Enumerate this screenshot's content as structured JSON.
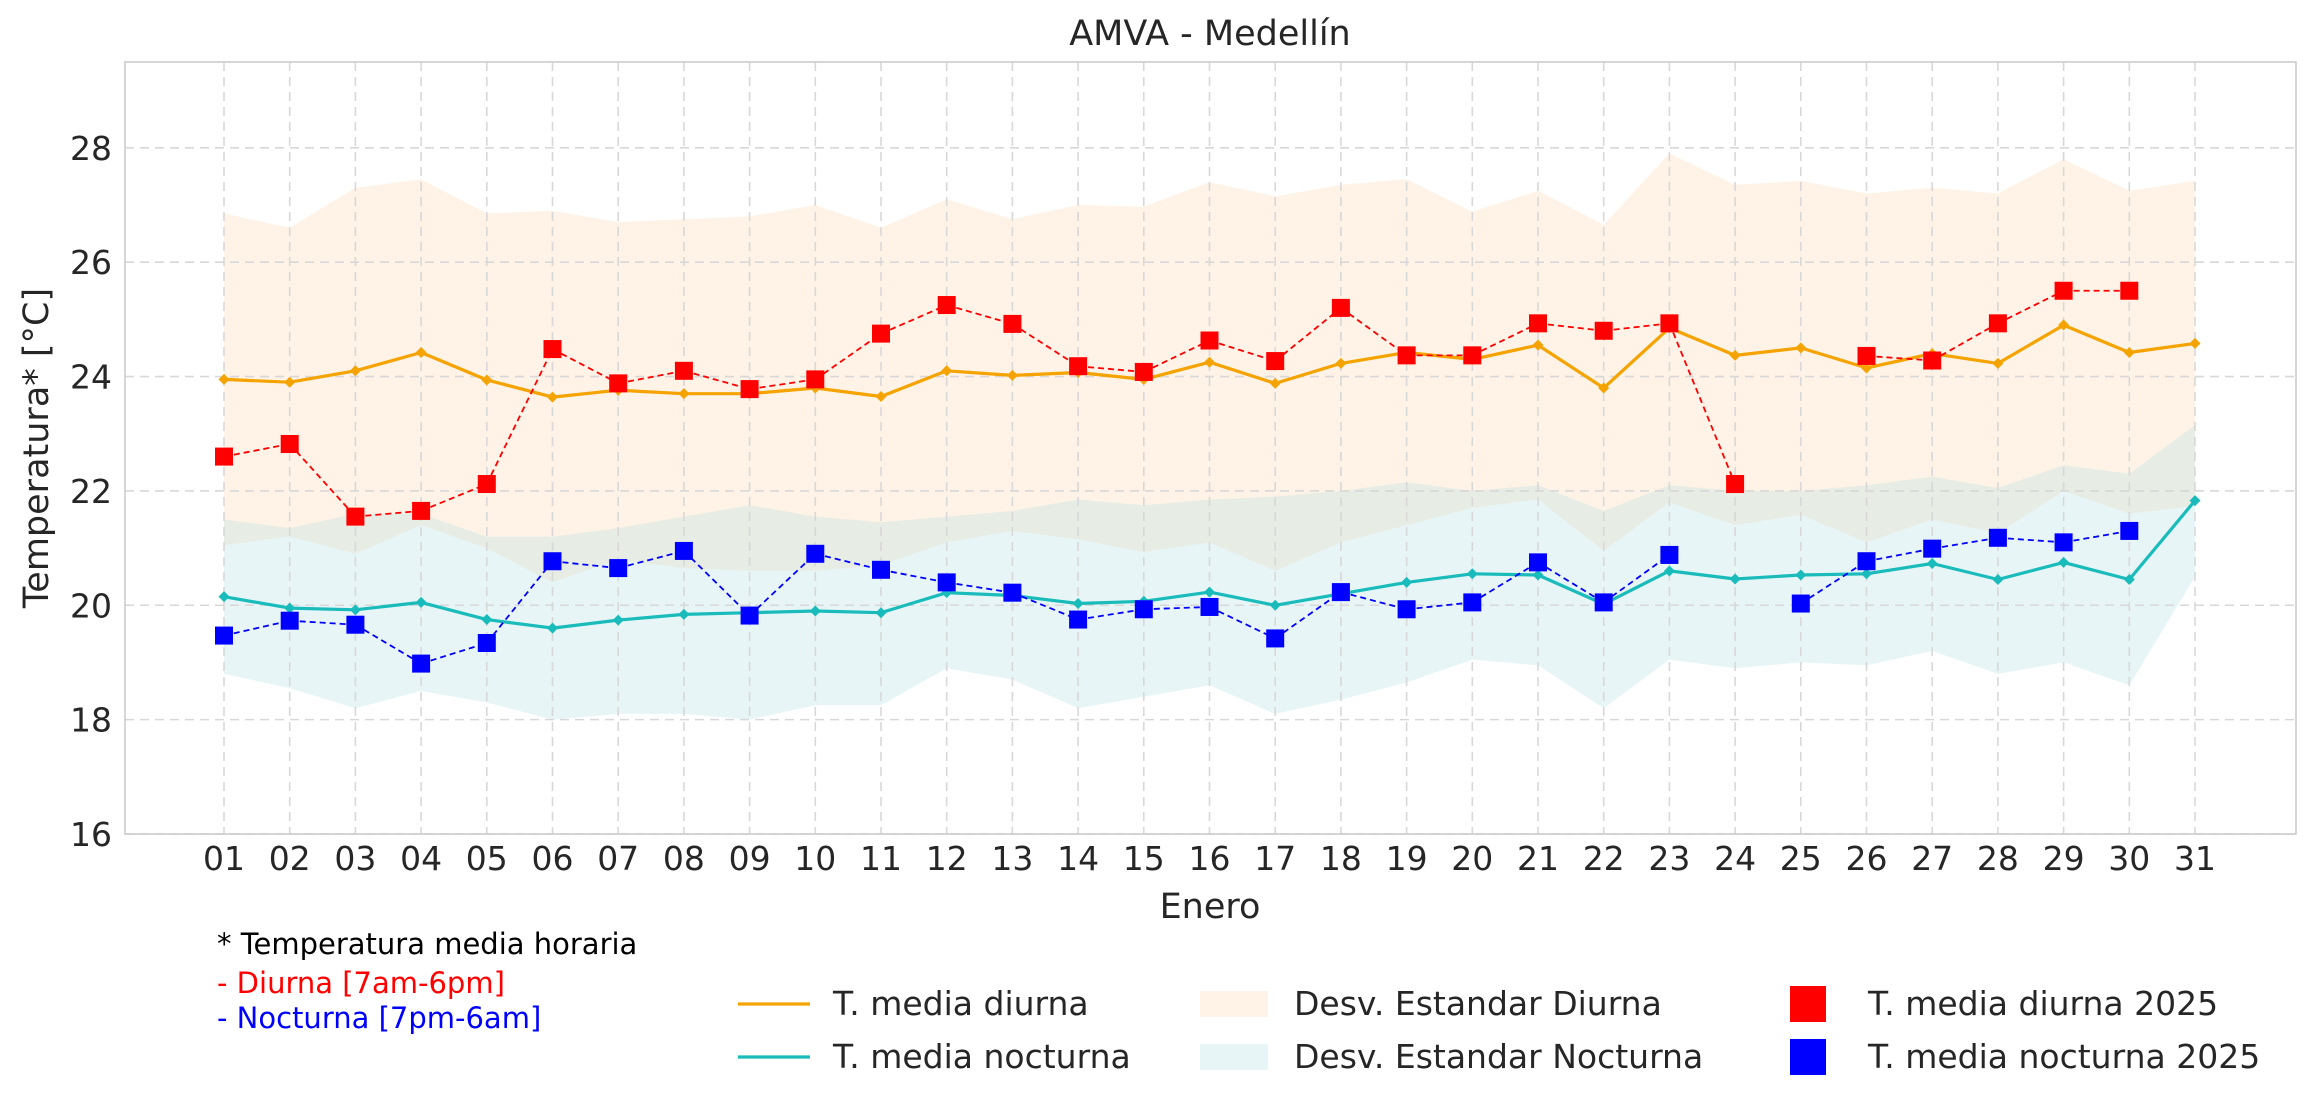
{
  "chart_data": {
    "type": "line",
    "title": "AMVA - Medellín",
    "xlabel": "Enero",
    "ylabel": "Temperatura* [°C]",
    "ylim": [
      16,
      29.5
    ],
    "yticks": [
      16,
      18,
      20,
      22,
      24,
      26,
      28
    ],
    "grid": true,
    "legend_position": "bottom",
    "categories": [
      "01",
      "02",
      "03",
      "04",
      "05",
      "06",
      "07",
      "08",
      "09",
      "10",
      "11",
      "12",
      "13",
      "14",
      "15",
      "16",
      "17",
      "18",
      "19",
      "20",
      "21",
      "22",
      "23",
      "24",
      "25",
      "26",
      "27",
      "28",
      "29",
      "30",
      "31"
    ],
    "series": [
      {
        "name": "T. media diurna",
        "kind": "line",
        "color": "#f5a300",
        "values": [
          23.95,
          23.9,
          24.1,
          24.42,
          23.94,
          23.64,
          23.76,
          23.7,
          23.7,
          23.8,
          23.65,
          24.1,
          24.02,
          24.07,
          23.95,
          24.25,
          23.88,
          24.23,
          24.42,
          24.3,
          24.55,
          23.8,
          24.85,
          24.37,
          24.5,
          24.15,
          24.4,
          24.23,
          24.9,
          24.42,
          24.58
        ]
      },
      {
        "name": "T. media nocturna",
        "kind": "line",
        "color": "#19bbbb",
        "values": [
          20.15,
          19.95,
          19.92,
          20.05,
          19.75,
          19.6,
          19.74,
          19.84,
          19.87,
          19.9,
          19.87,
          20.22,
          20.17,
          20.03,
          20.07,
          20.23,
          20.0,
          20.2,
          20.4,
          20.55,
          20.53,
          20.02,
          20.6,
          20.46,
          20.53,
          20.55,
          20.73,
          20.45,
          20.75,
          20.45,
          21.83
        ]
      },
      {
        "name": "Desv. Estandar Diurna",
        "kind": "band",
        "color": "#fdd9b0",
        "upper": [
          26.85,
          26.6,
          27.3,
          27.45,
          26.85,
          26.9,
          26.7,
          26.75,
          26.8,
          27.0,
          26.6,
          27.1,
          26.75,
          27.0,
          26.97,
          27.4,
          27.15,
          27.35,
          27.45,
          26.88,
          27.25,
          26.65,
          27.9,
          27.35,
          27.42,
          27.2,
          27.3,
          27.2,
          27.8,
          27.25,
          27.42
        ],
        "lower": [
          21.05,
          21.2,
          20.9,
          21.4,
          21.0,
          20.4,
          20.8,
          20.65,
          20.6,
          20.6,
          20.7,
          21.1,
          21.3,
          21.15,
          20.93,
          21.1,
          20.6,
          21.1,
          21.4,
          21.7,
          21.85,
          20.95,
          21.8,
          21.4,
          21.58,
          21.1,
          21.5,
          21.26,
          22.0,
          21.6,
          21.74
        ]
      },
      {
        "name": "Desv. Estandar Nocturna",
        "kind": "band",
        "color": "#b8dfe3",
        "upper": [
          21.5,
          21.35,
          21.6,
          21.6,
          21.2,
          21.2,
          21.35,
          21.55,
          21.75,
          21.55,
          21.45,
          21.55,
          21.65,
          21.85,
          21.75,
          21.85,
          21.9,
          22.0,
          22.15,
          22.0,
          22.1,
          21.65,
          22.1,
          22.0,
          22.0,
          22.1,
          22.25,
          22.05,
          22.45,
          22.3,
          23.15
        ],
        "lower": [
          18.8,
          18.55,
          18.2,
          18.5,
          18.3,
          18.0,
          18.1,
          18.1,
          18.0,
          18.25,
          18.25,
          18.9,
          18.7,
          18.2,
          18.4,
          18.6,
          18.1,
          18.35,
          18.65,
          19.05,
          18.95,
          18.2,
          19.05,
          18.9,
          19.0,
          18.95,
          19.2,
          18.8,
          19.0,
          18.6,
          20.5
        ]
      },
      {
        "name": "T. media diurna 2025",
        "kind": "markers",
        "color": "#ff0000",
        "values": [
          22.6,
          22.82,
          21.55,
          21.65,
          22.12,
          24.48,
          23.88,
          24.1,
          23.78,
          23.95,
          24.75,
          25.25,
          24.92,
          24.18,
          24.08,
          24.63,
          24.27,
          25.2,
          24.37,
          24.37,
          24.93,
          24.8,
          24.93,
          22.12,
          null,
          24.36,
          24.28,
          24.93,
          25.5,
          25.5,
          null
        ]
      },
      {
        "name": "T. media nocturna 2025",
        "kind": "markers",
        "color": "#0000ff",
        "values": [
          19.47,
          19.73,
          19.66,
          18.98,
          19.34,
          20.77,
          20.65,
          20.95,
          19.82,
          20.9,
          20.62,
          20.4,
          20.22,
          19.75,
          19.93,
          19.97,
          19.42,
          20.23,
          19.93,
          20.05,
          20.75,
          20.05,
          20.88,
          null,
          20.03,
          20.77,
          20.99,
          21.18,
          21.1,
          21.3,
          null
        ]
      }
    ],
    "notes": [
      {
        "text": "* Temperatura media horaria",
        "color": "#000000"
      },
      {
        "text": "- Diurna [7am-6pm]",
        "color": "#ff0000"
      },
      {
        "text": "- Nocturna [7pm-6am]",
        "color": "#0000ff"
      }
    ]
  }
}
